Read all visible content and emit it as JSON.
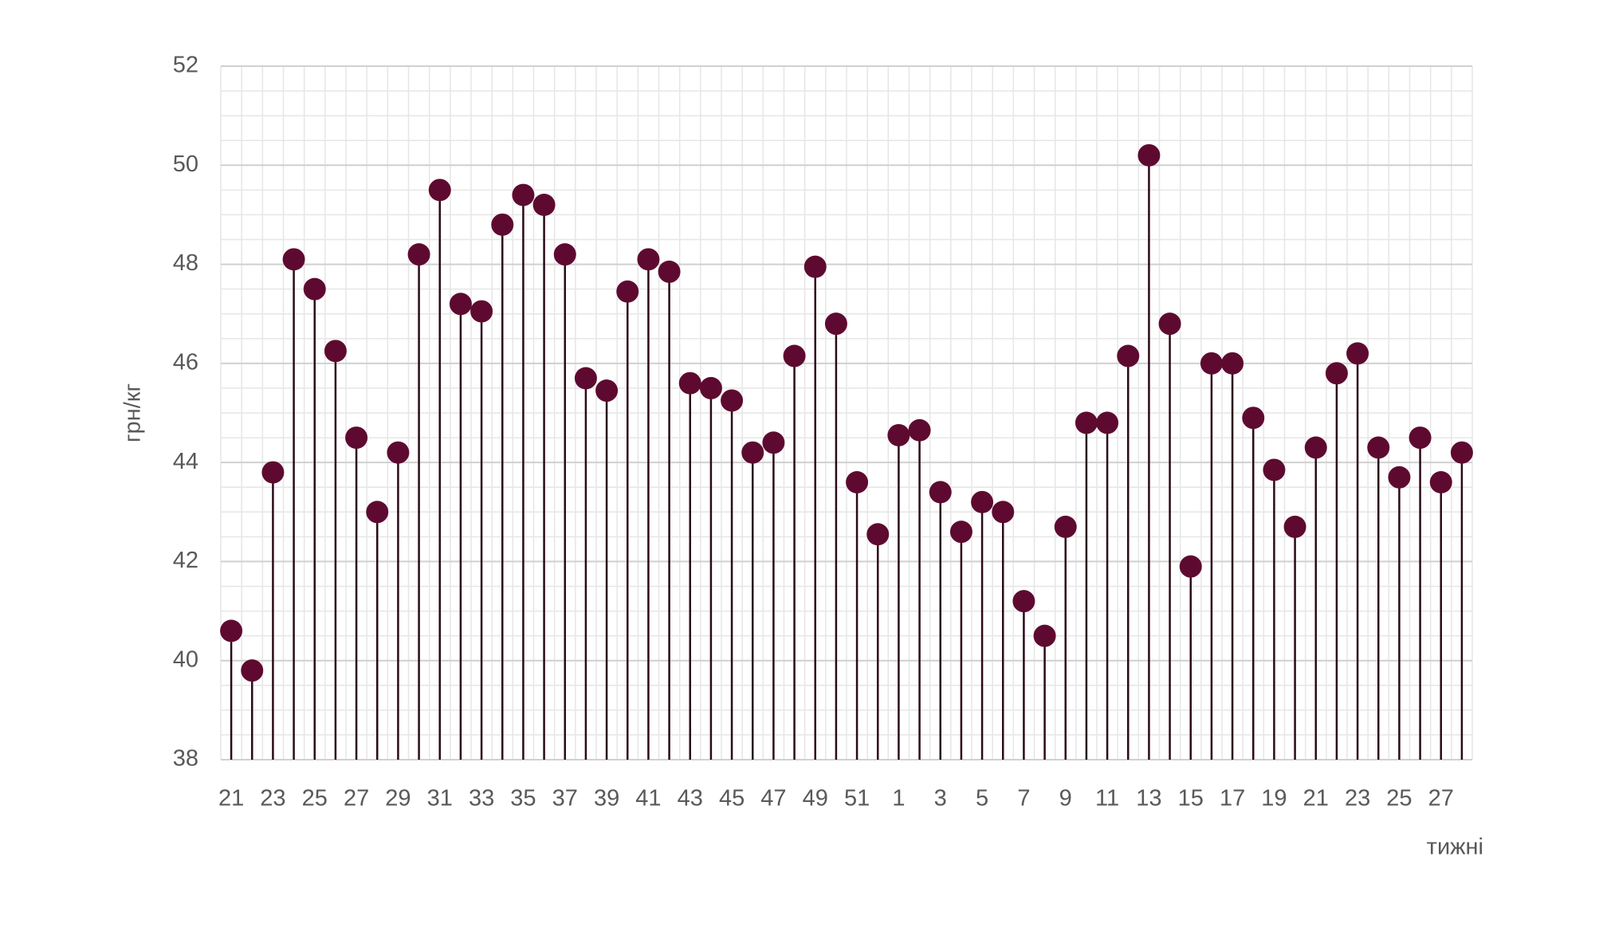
{
  "chart_data": {
    "type": "lollipop",
    "x_label": "тижні",
    "y_label": "грн/кг",
    "categories": [
      "21",
      null,
      "23",
      null,
      "25",
      null,
      "27",
      null,
      "29",
      null,
      "31",
      null,
      "33",
      null,
      "35",
      null,
      "37",
      null,
      "39",
      null,
      "41",
      null,
      "43",
      null,
      "45",
      null,
      "47",
      null,
      "49",
      null,
      "51",
      null,
      "1",
      null,
      "3",
      null,
      "5",
      null,
      "7",
      null,
      "9",
      null,
      "11",
      null,
      "13",
      null,
      "15",
      null,
      "17",
      null,
      "19",
      null,
      "21",
      null,
      "23",
      null,
      "25",
      null,
      "27",
      null
    ],
    "values": [
      40.6,
      39.8,
      43.8,
      48.1,
      47.5,
      46.25,
      44.5,
      43.0,
      44.2,
      48.2,
      49.5,
      47.2,
      47.05,
      48.8,
      49.4,
      49.2,
      48.2,
      45.7,
      45.45,
      47.45,
      48.1,
      47.85,
      45.6,
      45.5,
      45.25,
      44.2,
      44.4,
      46.15,
      47.95,
      46.8,
      43.6,
      42.55,
      44.55,
      44.65,
      43.4,
      42.6,
      43.2,
      43.0,
      41.2,
      40.5,
      42.7,
      44.8,
      44.8,
      46.15,
      50.2,
      46.8,
      41.9,
      46.0,
      46.0,
      44.9,
      43.85,
      42.7,
      44.3,
      45.8,
      46.2,
      44.3,
      43.7,
      44.5,
      43.6,
      44.2
    ],
    "color": "#5e0a30",
    "stem_color": "#2b0a18",
    "ylim": [
      38,
      52
    ],
    "yticks": [
      38,
      40,
      42,
      44,
      46,
      48,
      50,
      52
    ],
    "grid": true
  }
}
